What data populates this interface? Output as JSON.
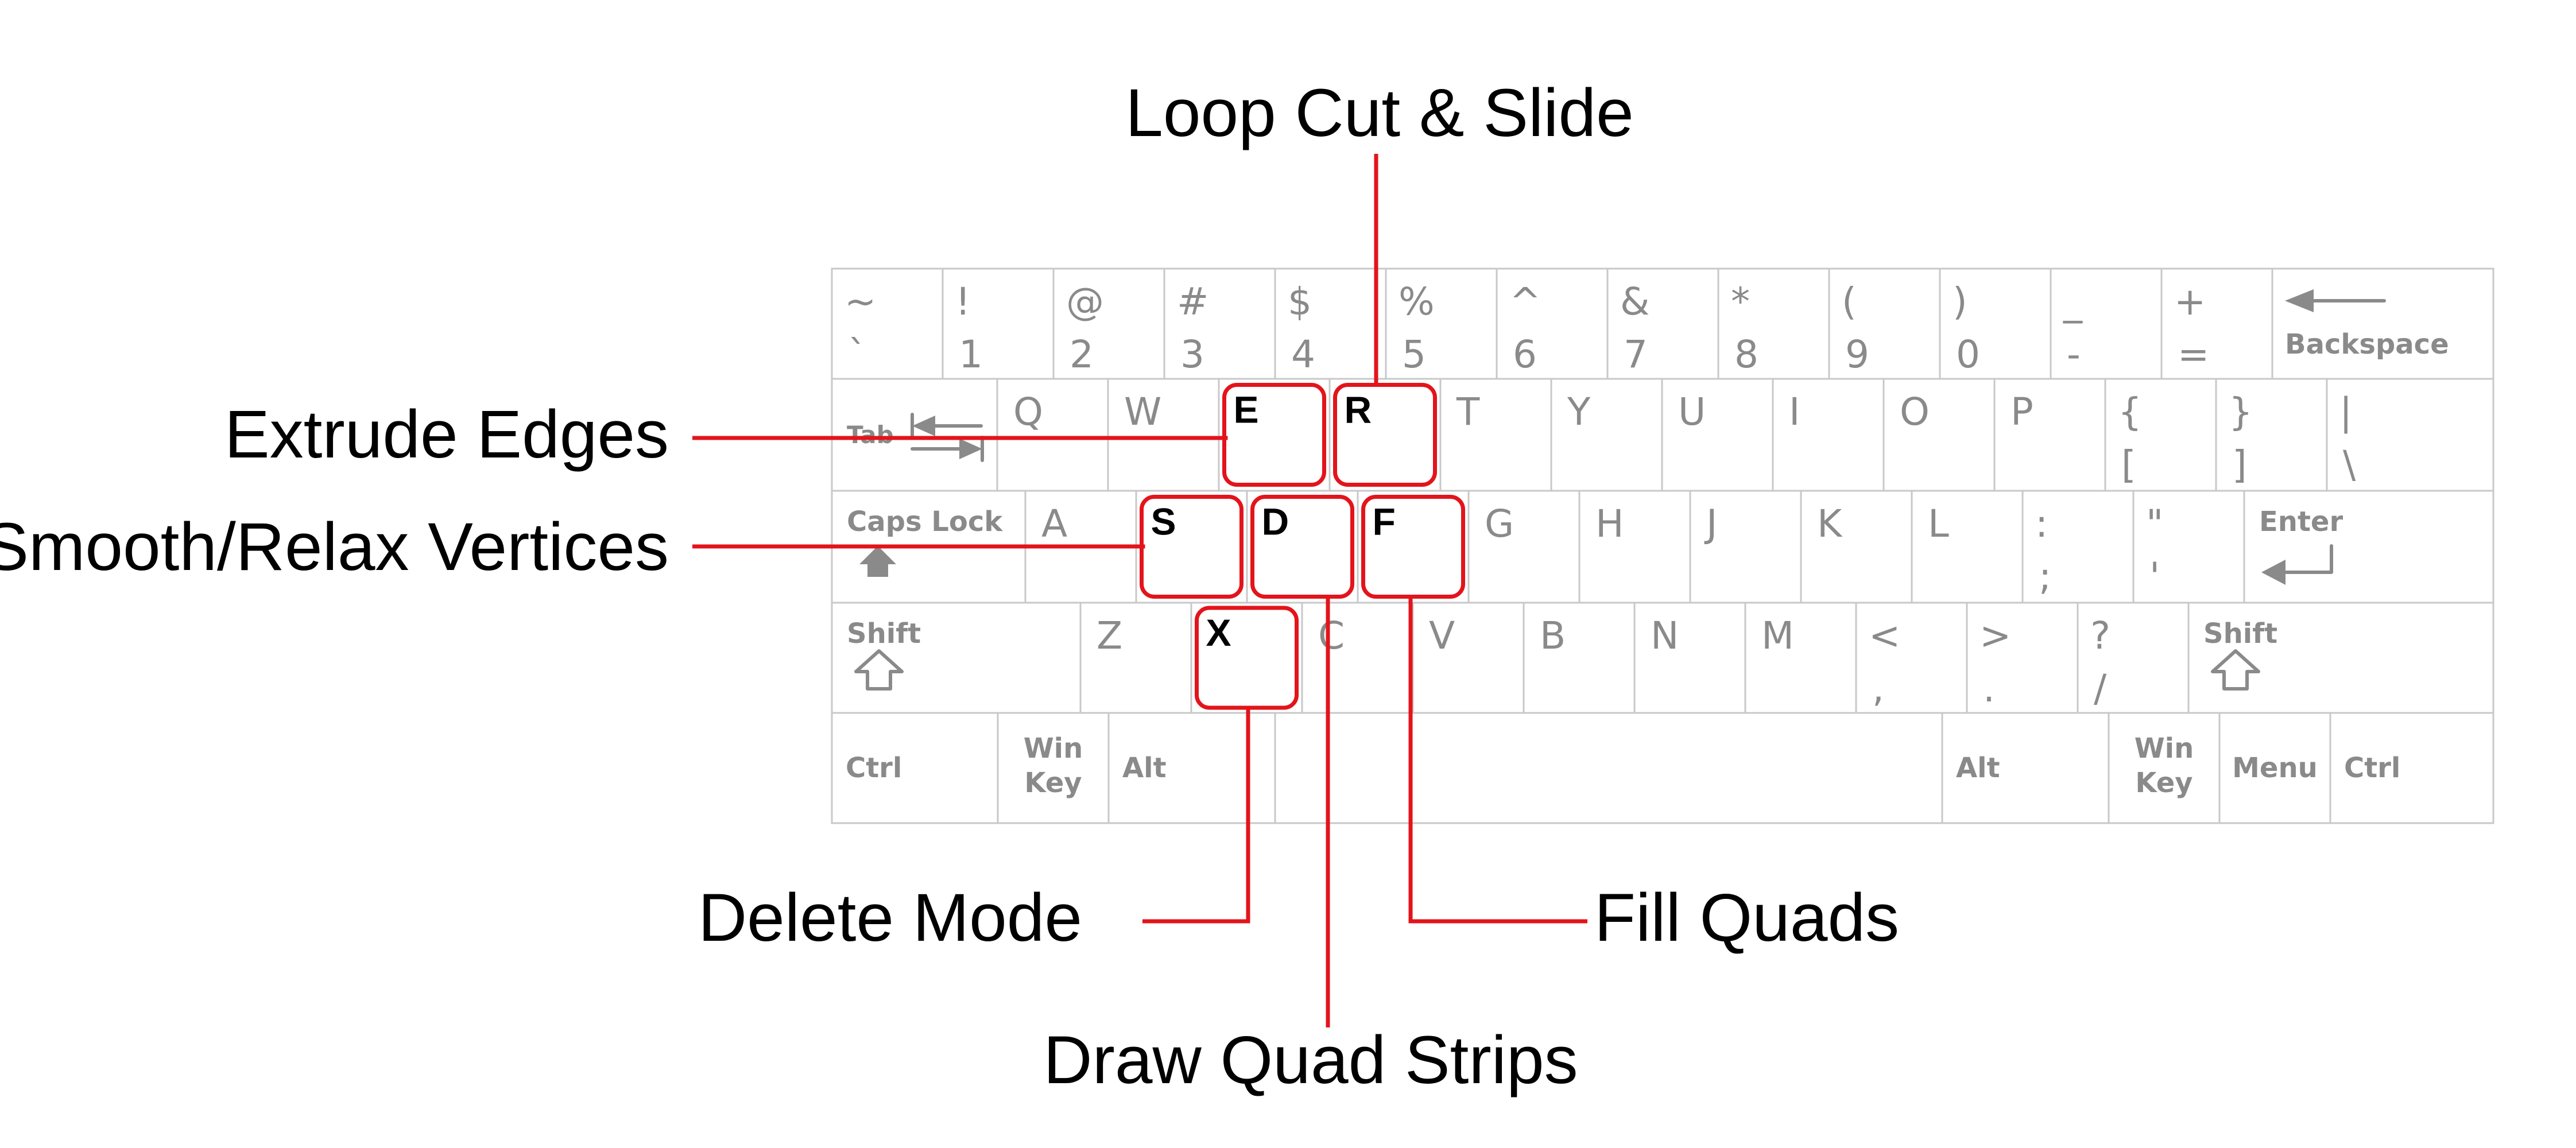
{
  "accent_color": "#e3141b",
  "keyboard": {
    "rows": [
      [
        {
          "id": "grave",
          "top": "~",
          "bottom": "`"
        },
        {
          "id": "1",
          "top": "!",
          "bottom": "1"
        },
        {
          "id": "2",
          "top": "@",
          "bottom": "2"
        },
        {
          "id": "3",
          "top": "#",
          "bottom": "3"
        },
        {
          "id": "4",
          "top": "$",
          "bottom": "4"
        },
        {
          "id": "5",
          "top": "%",
          "bottom": "5"
        },
        {
          "id": "6",
          "top": "^",
          "bottom": "6"
        },
        {
          "id": "7",
          "top": "&",
          "bottom": "7"
        },
        {
          "id": "8",
          "top": "*",
          "bottom": "8"
        },
        {
          "id": "9",
          "top": "(",
          "bottom": "9"
        },
        {
          "id": "0",
          "top": ")",
          "bottom": "0"
        },
        {
          "id": "minus",
          "top": "_",
          "bottom": "-"
        },
        {
          "id": "equals",
          "top": "+",
          "bottom": "="
        },
        {
          "id": "backspace",
          "label": "Backspace",
          "icon": "backspace-arrow-icon"
        }
      ],
      [
        {
          "id": "tab",
          "label": "Tab",
          "icon": "tab-arrows-icon"
        },
        {
          "id": "q",
          "label": "Q"
        },
        {
          "id": "w",
          "label": "W"
        },
        {
          "id": "e",
          "label": "E",
          "highlight": true
        },
        {
          "id": "r",
          "label": "R",
          "highlight": true
        },
        {
          "id": "t",
          "label": "T"
        },
        {
          "id": "y",
          "label": "Y"
        },
        {
          "id": "u",
          "label": "U"
        },
        {
          "id": "i",
          "label": "I"
        },
        {
          "id": "o",
          "label": "O"
        },
        {
          "id": "p",
          "label": "P"
        },
        {
          "id": "lbracket",
          "top": "{",
          "bottom": "["
        },
        {
          "id": "rbracket",
          "top": "}",
          "bottom": "]"
        },
        {
          "id": "backslash",
          "top": "|",
          "bottom": "\\"
        }
      ],
      [
        {
          "id": "capslock",
          "label": "Caps Lock",
          "icon": "caps-lock-icon"
        },
        {
          "id": "a",
          "label": "A"
        },
        {
          "id": "s",
          "label": "S",
          "highlight": true
        },
        {
          "id": "d",
          "label": "D",
          "highlight": true
        },
        {
          "id": "f",
          "label": "F",
          "highlight": true
        },
        {
          "id": "g",
          "label": "G"
        },
        {
          "id": "h",
          "label": "H"
        },
        {
          "id": "j",
          "label": "J"
        },
        {
          "id": "k",
          "label": "K"
        },
        {
          "id": "l",
          "label": "L"
        },
        {
          "id": "semicolon",
          "top": ":",
          "bottom": ";"
        },
        {
          "id": "quote",
          "top": "\"",
          "bottom": "'"
        },
        {
          "id": "enter",
          "label": "Enter",
          "icon": "enter-arrow-icon"
        }
      ],
      [
        {
          "id": "lshift",
          "label": "Shift",
          "icon": "shift-arrow-icon"
        },
        {
          "id": "z",
          "label": "Z"
        },
        {
          "id": "x",
          "label": "X",
          "highlight": true
        },
        {
          "id": "c",
          "label": "C"
        },
        {
          "id": "v",
          "label": "V"
        },
        {
          "id": "b",
          "label": "B"
        },
        {
          "id": "n",
          "label": "N"
        },
        {
          "id": "m",
          "label": "M"
        },
        {
          "id": "comma",
          "top": "<",
          "bottom": ","
        },
        {
          "id": "period",
          "top": ">",
          "bottom": "."
        },
        {
          "id": "slash",
          "top": "?",
          "bottom": "/"
        },
        {
          "id": "rshift",
          "label": "Shift",
          "icon": "shift-arrow-icon"
        }
      ],
      [
        {
          "id": "lctrl",
          "label": "Ctrl"
        },
        {
          "id": "lwin",
          "label": "Win Key"
        },
        {
          "id": "lalt",
          "label": "Alt"
        },
        {
          "id": "space",
          "label": ""
        },
        {
          "id": "ralt",
          "label": "Alt"
        },
        {
          "id": "rwin",
          "label": "Win Key"
        },
        {
          "id": "menu",
          "label": "Menu"
        },
        {
          "id": "rctrl",
          "label": "Ctrl"
        }
      ]
    ]
  },
  "annotations": [
    {
      "id": "loop-cut-slide",
      "text": "Loop Cut & Slide",
      "key": "r"
    },
    {
      "id": "extrude-edges",
      "text": "Extrude Edges",
      "key": "e"
    },
    {
      "id": "smooth-relax-vertices",
      "text": "Smooth/Relax Vertices",
      "key": "s"
    },
    {
      "id": "delete-mode",
      "text": "Delete Mode",
      "key": "x"
    },
    {
      "id": "fill-quads",
      "text": "Fill Quads",
      "key": "f"
    },
    {
      "id": "draw-quad-strips",
      "text": "Draw Quad Strips",
      "key": "d"
    }
  ]
}
